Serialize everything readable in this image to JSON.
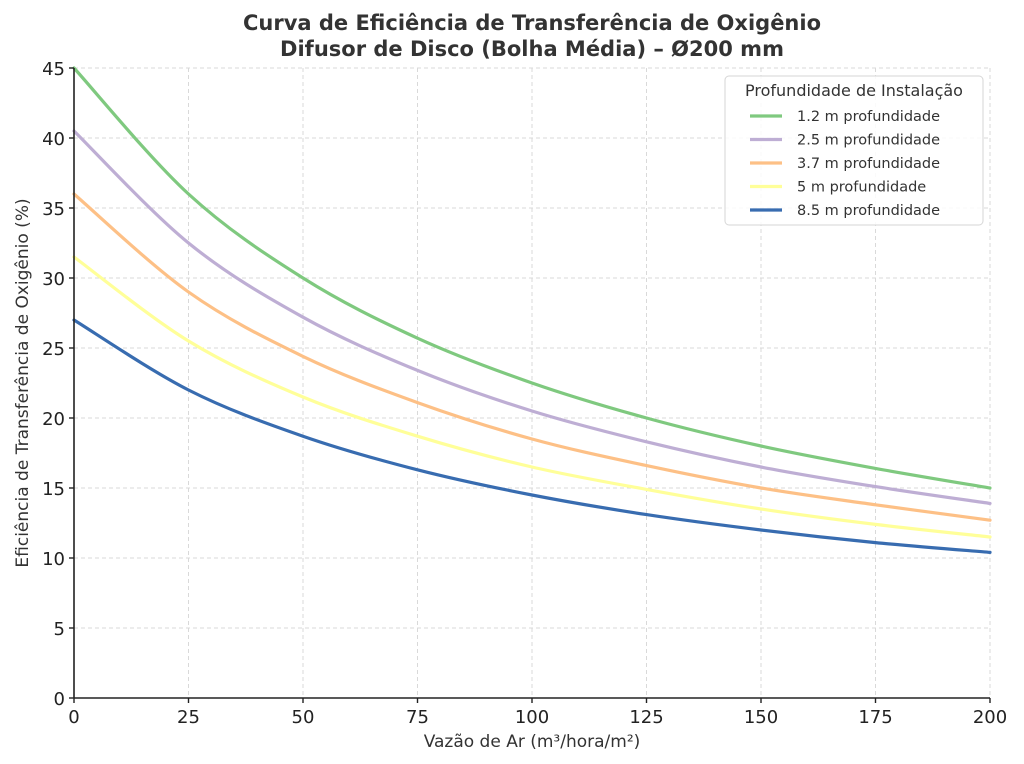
{
  "chart_data": {
    "type": "line",
    "title": "Curva de Eficiência de Transferência de Oxigênio",
    "subtitle": "Difusor de Disco (Bolha Média) – Ø200 mm",
    "xlabel": "Vazão de Ar (m³/hora/m²)",
    "ylabel": "Eficiência de Transferência de Oxigênio (%)",
    "xlim": [
      0,
      200
    ],
    "ylim": [
      0,
      45
    ],
    "x_ticks": [
      0,
      25,
      50,
      75,
      100,
      125,
      150,
      175,
      200
    ],
    "y_ticks": [
      0,
      5,
      10,
      15,
      20,
      25,
      30,
      35,
      40,
      45
    ],
    "grid": true,
    "legend_title": "Profundidade de Instalação",
    "legend_position": "upper right",
    "x": [
      0,
      25,
      50,
      75,
      100,
      125,
      150,
      175,
      200
    ],
    "series": [
      {
        "name": "1.2 m profundidade",
        "color": "#7fc97f",
        "values": [
          45.0,
          36.0,
          30.0,
          25.7,
          22.5,
          20.0,
          18.0,
          16.4,
          15.0
        ]
      },
      {
        "name": "2.5 m profundidade",
        "color": "#beaed4",
        "values": [
          40.5,
          32.5,
          27.2,
          23.4,
          20.5,
          18.3,
          16.5,
          15.1,
          13.9
        ]
      },
      {
        "name": "3.7 m profundidade",
        "color": "#fdc086",
        "values": [
          36.0,
          29.0,
          24.4,
          21.1,
          18.5,
          16.6,
          15.0,
          13.8,
          12.7
        ]
      },
      {
        "name": "5 m profundidade",
        "color": "#ffff99",
        "values": [
          31.5,
          25.5,
          21.5,
          18.7,
          16.5,
          14.9,
          13.5,
          12.4,
          11.5
        ]
      },
      {
        "name": "8.5 m profundidade",
        "color": "#386cb0",
        "values": [
          27.0,
          22.0,
          18.7,
          16.3,
          14.5,
          13.1,
          12.0,
          11.1,
          10.4
        ]
      }
    ]
  }
}
